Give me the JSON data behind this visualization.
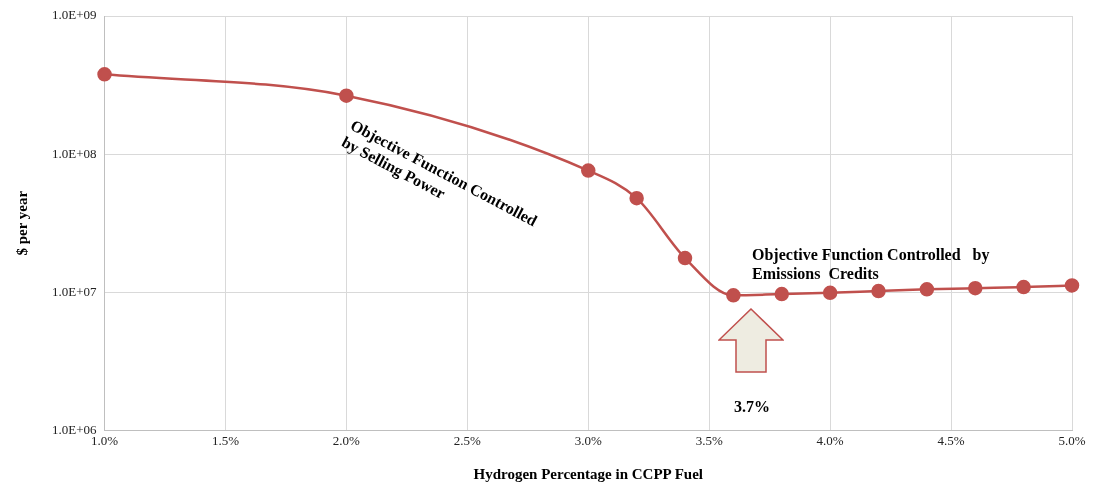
{
  "chart_data": {
    "type": "line",
    "xlabel": "Hydrogen Percentage in CCPP Fuel",
    "ylabel": "$ per year",
    "x": [
      1.0,
      2.0,
      3.0,
      3.2,
      3.4,
      3.6,
      3.8,
      4.0,
      4.2,
      4.4,
      4.6,
      4.8,
      5.0
    ],
    "series": [
      {
        "color": "#c0504d",
        "values": [
          378000000,
          265000000,
          76000000,
          48000000,
          17700000,
          9500000,
          9700000,
          9900000,
          10200000,
          10500000,
          10700000,
          10900000,
          11200000
        ]
      }
    ],
    "xlim": [
      1.0,
      5.0
    ],
    "xticks": [
      {
        "value": 1.0,
        "label": "1.0%"
      },
      {
        "value": 1.5,
        "label": "1.5%"
      },
      {
        "value": 2.0,
        "label": "2.0%"
      },
      {
        "value": 2.5,
        "label": "2.5%"
      },
      {
        "value": 3.0,
        "label": "3.0%"
      },
      {
        "value": 3.5,
        "label": "3.5%"
      },
      {
        "value": 4.0,
        "label": "4.0%"
      },
      {
        "value": 4.5,
        "label": "4.5%"
      },
      {
        "value": 5.0,
        "label": "5.0%"
      }
    ],
    "ylim": [
      1000000,
      1000000000
    ],
    "yticks": [
      {
        "value": 1000000,
        "label": "1.0E+06"
      },
      {
        "value": 10000000,
        "label": "1.0E+07"
      },
      {
        "value": 100000000,
        "label": "1.0E+08"
      },
      {
        "value": 1000000000,
        "label": "1.0E+09"
      }
    ],
    "log": "y",
    "grid": true,
    "marker": "circle",
    "line_style": "solid",
    "legend": false,
    "annotations": [
      "Objective Function Controlled\nby Selling Power",
      "Objective Function Controlled   by\nEmissions  Credits",
      "3.7%"
    ]
  }
}
